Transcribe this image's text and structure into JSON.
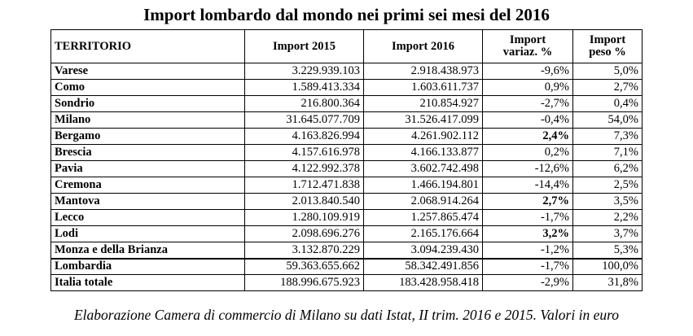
{
  "title": "Import lombardo dal mondo nei primi sei mesi del 2016",
  "headers": {
    "territorio": "TERRITORIO",
    "import_2015": "Import 2015",
    "import_2016": "Import 2016",
    "variaz_line1": "Import",
    "variaz_line2": "variaz. %",
    "peso_line1": "Import",
    "peso_line2": "peso %"
  },
  "rows": [
    {
      "name": "Varese",
      "i2015": "3.229.939.103",
      "i2016": "2.918.438.973",
      "var": "-9,6%",
      "peso": "5,0%"
    },
    {
      "name": "Como",
      "i2015": "1.589.413.334",
      "i2016": "1.603.611.737",
      "var": "0,9%",
      "peso": "2,7%"
    },
    {
      "name": "Sondrio",
      "i2015": "216.800.364",
      "i2016": "210.854.927",
      "var": "-2,7%",
      "peso": "0,4%"
    },
    {
      "name": "Milano",
      "i2015": "31.645.077.709",
      "i2016": "31.526.417.099",
      "var": "-0,4%",
      "peso": "54,0%"
    },
    {
      "name": "Bergamo",
      "i2015": "4.163.826.994",
      "i2016": "4.261.902.112",
      "var": "2,4%",
      "peso": "7,3%"
    },
    {
      "name": "Brescia",
      "i2015": "4.157.616.978",
      "i2016": "4.166.133.877",
      "var": "0,2%",
      "peso": "7,1%"
    },
    {
      "name": "Pavia",
      "i2015": "4.122.992.378",
      "i2016": "3.602.742.498",
      "var": "-12,6%",
      "peso": "6,2%"
    },
    {
      "name": "Cremona",
      "i2015": "1.712.471.838",
      "i2016": "1.466.194.801",
      "var": "-14,4%",
      "peso": "2,5%"
    },
    {
      "name": "Mantova",
      "i2015": "2.013.840.540",
      "i2016": "2.068.914.264",
      "var": "2,7%",
      "peso": "3,5%"
    },
    {
      "name": "Lecco",
      "i2015": "1.280.109.919",
      "i2016": "1.257.865.474",
      "var": "-1,7%",
      "peso": "2,2%"
    },
    {
      "name": "Lodi",
      "i2015": "2.098.696.276",
      "i2016": "2.165.176.664",
      "var": "3,2%",
      "peso": "3,7%"
    },
    {
      "name": "Monza e della Brianza",
      "i2015": "3.132.870.229",
      "i2016": "3.094.239.430",
      "var": "-1,2%",
      "peso": "5,3%"
    },
    {
      "name": "Lombardia",
      "i2015": "59.363.655.662",
      "i2016": "58.342.491.856",
      "var": "-1,7%",
      "peso": "100,0%"
    },
    {
      "name": "Italia totale",
      "i2015": "188.996.675.923",
      "i2016": "183.428.958.418",
      "var": "-2,9%",
      "peso": "31,8%"
    }
  ],
  "caption": "Elaborazione Camera di commercio di Milano su dati Istat, II trim. 2016 e 2015. Valori in euro"
}
